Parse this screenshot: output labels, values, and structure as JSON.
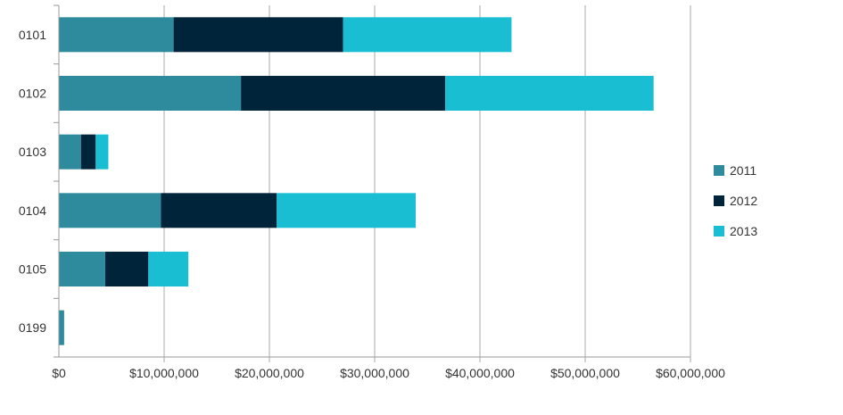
{
  "chart_data": {
    "type": "bar",
    "orientation": "horizontal",
    "stacked": true,
    "categories": [
      "0101",
      "0102",
      "0103",
      "0104",
      "0105",
      "0199"
    ],
    "series": [
      {
        "name": "2011",
        "color": "#2e8b9e",
        "values": [
          10900000,
          17300000,
          2100000,
          9700000,
          4400000,
          500000
        ]
      },
      {
        "name": "2012",
        "color": "#00243a",
        "values": [
          16100000,
          19400000,
          1400000,
          11000000,
          4100000,
          0
        ]
      },
      {
        "name": "2013",
        "color": "#1abed3",
        "values": [
          16000000,
          19800000,
          1200000,
          13200000,
          3800000,
          0
        ]
      }
    ],
    "x_ticks": [
      "$0",
      "$10,000,000",
      "$20,000,000",
      "$30,000,000",
      "$40,000,000",
      "$50,000,000",
      "$60,000,000"
    ],
    "xlim": [
      0,
      60000000
    ],
    "grid": true,
    "legend_position": "right"
  }
}
